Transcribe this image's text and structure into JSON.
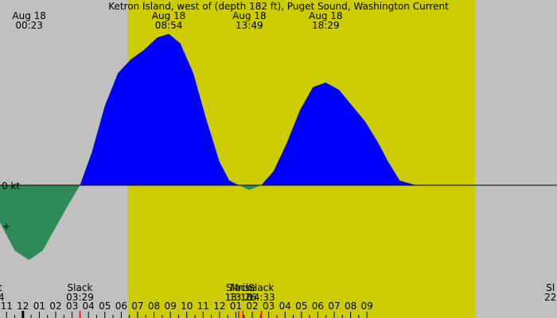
{
  "chart_data": {
    "type": "area",
    "title": "Ketron Island, west of (depth 182 ft), Puget Sound, Washington Current",
    "zero_label": "0 kt",
    "colors": {
      "night": "#c0c0c0",
      "day": "#cccc00",
      "flood": "#0000ff",
      "ebb": "#2e8b57",
      "tick_minor": "#000000",
      "tick_event": "#ff0000"
    },
    "x_range_hours": [
      -1.4,
      32.6
    ],
    "y_range_kt": [
      -1.0,
      1.6
    ],
    "daylight_hours": [
      [
        6.4,
        27.6
      ]
    ],
    "hour_ticks": [
      "11",
      "12",
      "01",
      "02",
      "03",
      "04",
      "05",
      "06",
      "07",
      "08",
      "09",
      "10",
      "11",
      "12",
      "01",
      "02",
      "03",
      "04",
      "05",
      "06",
      "07",
      "08",
      "09"
    ],
    "hour_tick_start": -1,
    "top_labels": [
      {
        "date": "Aug 18",
        "time": "00:23",
        "hour": 0.38
      },
      {
        "date": "Aug 18",
        "time": "08:54",
        "hour": 8.9
      },
      {
        "date": "Aug 18",
        "time": "13:49",
        "hour": 13.82
      },
      {
        "date": "Aug 18",
        "time": "18:29",
        "hour": 18.48
      }
    ],
    "bottom_labels": [
      {
        "label": "Slack",
        "time": "03:29",
        "hour": 3.48
      },
      {
        "label": "Slack",
        "time": "13:10",
        "hour": 13.17
      },
      {
        "label": "Mrise",
        "time": "13:26",
        "hour": 13.43
      },
      {
        "label": "Slack",
        "time": "14:33",
        "hour": 14.55
      },
      {
        "label": "Sl",
        "time": "22",
        "hour": 32.2
      }
    ],
    "left_edge_labels": [
      {
        "label": "t",
        "time": "4"
      }
    ],
    "event_markers": [
      3.48,
      13.17,
      13.43,
      14.55
    ],
    "series": [
      {
        "kind": "current",
        "x": [
          -1.4,
          -0.5,
          0.38,
          1.2,
          2.0,
          2.8,
          3.48,
          4.2,
          5.0,
          5.8,
          6.6,
          7.4,
          8.2,
          8.9,
          9.6,
          10.4,
          11.2,
          12.0,
          12.6,
          13.17,
          13.82,
          14.55,
          15.3,
          16.1,
          16.9,
          17.7,
          18.48,
          19.3,
          20.1,
          20.9,
          21.7,
          22.3,
          23.0,
          24.0
        ],
        "y": [
          -0.4,
          -0.7,
          -0.8,
          -0.7,
          -0.45,
          -0.2,
          0.0,
          0.35,
          0.85,
          1.2,
          1.35,
          1.45,
          1.58,
          1.62,
          1.52,
          1.2,
          0.7,
          0.25,
          0.05,
          0.0,
          -0.05,
          0.0,
          0.15,
          0.45,
          0.8,
          1.05,
          1.1,
          1.02,
          0.85,
          0.68,
          0.45,
          0.25,
          0.05,
          0.0
        ]
      }
    ]
  }
}
